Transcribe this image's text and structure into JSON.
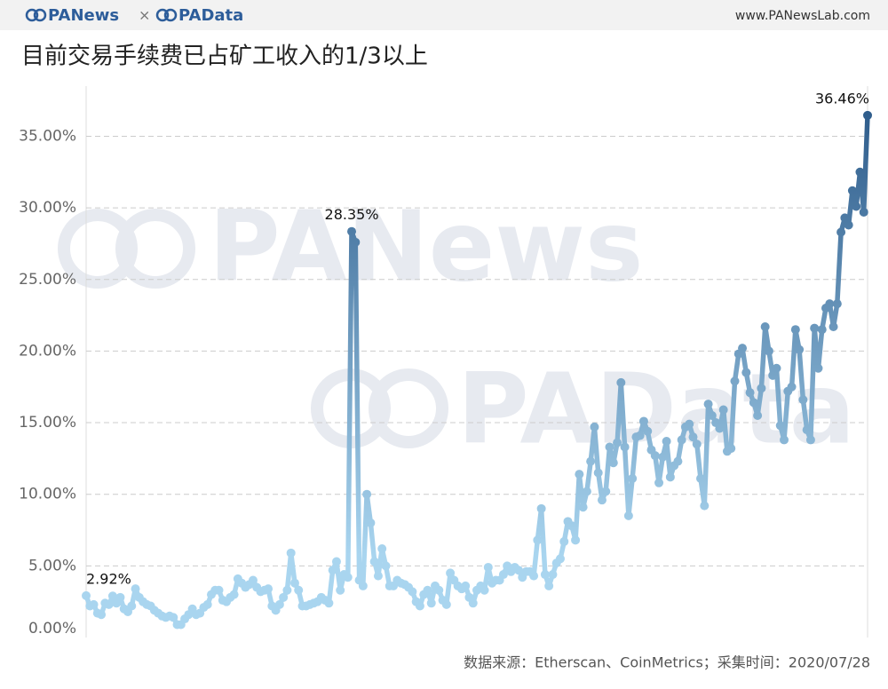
{
  "header": {
    "brand_left": "PANews",
    "separator": "×",
    "brand_right": "PAData",
    "site": "www.PANewsLab.com"
  },
  "watermark": [
    "PANews",
    "PAData"
  ],
  "footer": {
    "source": "数据来源：Etherscan、CoinMetrics；采集时间：2020/07/28"
  },
  "chart_data": {
    "type": "line",
    "title": "目前交易手续费已占矿工收入的1/3以上",
    "ylim": [
      0,
      38.5
    ],
    "yticks": [
      {
        "value": 0,
        "label": "0.00%"
      },
      {
        "value": 5,
        "label": "5.00%"
      },
      {
        "value": 10,
        "label": "10.00%"
      },
      {
        "value": 15,
        "label": "15.00%"
      },
      {
        "value": 20,
        "label": "20.00%"
      },
      {
        "value": 25,
        "label": "25.00%"
      },
      {
        "value": 30,
        "label": "30.00%"
      },
      {
        "value": 35,
        "label": "35.00%"
      }
    ],
    "grid": true,
    "color_low": "#a9d5ef",
    "color_high": "#2f5d8c",
    "values": [
      2.92,
      2.2,
      2.3,
      1.7,
      1.6,
      2.4,
      2.3,
      2.9,
      2.4,
      2.8,
      2.0,
      1.8,
      2.2,
      3.4,
      2.8,
      2.5,
      2.3,
      2.2,
      1.9,
      1.7,
      1.5,
      1.4,
      1.5,
      1.4,
      0.9,
      0.9,
      1.3,
      1.6,
      2.0,
      1.6,
      1.7,
      2.1,
      2.3,
      3.0,
      3.3,
      3.3,
      2.6,
      2.5,
      2.8,
      3.0,
      4.1,
      3.8,
      3.5,
      3.7,
      4.0,
      3.5,
      3.2,
      3.3,
      3.4,
      2.2,
      1.9,
      2.3,
      2.8,
      3.3,
      5.9,
      3.8,
      3.3,
      2.2,
      2.2,
      2.3,
      2.4,
      2.5,
      2.8,
      2.6,
      2.4,
      4.7,
      5.3,
      3.3,
      4.4,
      4.2,
      28.35,
      27.6,
      4.0,
      3.6,
      10.0,
      8.0,
      5.3,
      4.3,
      6.2,
      5.0,
      3.6,
      3.6,
      4.0,
      3.8,
      3.7,
      3.5,
      3.2,
      2.5,
      2.2,
      3.0,
      3.3,
      2.4,
      3.6,
      3.3,
      2.6,
      2.3,
      4.5,
      4.0,
      3.6,
      3.4,
      3.6,
      2.8,
      2.4,
      3.3,
      3.6,
      3.3,
      4.9,
      3.8,
      4.0,
      4.0,
      4.4,
      5.0,
      4.6,
      4.9,
      4.7,
      4.2,
      4.6,
      4.6,
      4.3,
      6.8,
      9.0,
      4.4,
      3.6,
      4.4,
      5.2,
      5.5,
      6.7,
      8.1,
      7.8,
      6.8,
      11.4,
      9.1,
      10.2,
      12.3,
      14.7,
      11.5,
      9.6,
      10.2,
      13.3,
      12.2,
      13.6,
      17.8,
      13.3,
      8.5,
      11.1,
      14.0,
      14.1,
      15.1,
      14.4,
      13.1,
      12.7,
      10.8,
      12.6,
      13.7,
      11.2,
      12.0,
      12.3,
      13.8,
      14.7,
      14.9,
      14.0,
      13.5,
      11.1,
      9.2,
      16.3,
      15.5,
      15.0,
      14.6,
      15.9,
      13.0,
      13.2,
      17.9,
      19.8,
      20.2,
      18.5,
      17.1,
      16.4,
      15.5,
      17.4,
      21.7,
      20.0,
      18.3,
      18.8,
      14.8,
      13.8,
      17.2,
      17.5,
      21.5,
      20.1,
      16.6,
      14.5,
      13.8,
      21.6,
      18.8,
      21.5,
      23.0,
      23.3,
      21.7,
      23.3,
      28.3,
      29.3,
      28.8,
      31.2,
      30.1,
      32.5,
      29.7,
      36.46
    ],
    "value_labels": [
      "2.92%",
      null,
      null,
      null,
      null,
      null,
      null,
      null,
      null,
      null,
      null,
      null,
      null,
      null,
      null,
      null,
      null,
      null,
      null,
      null,
      null,
      null,
      null,
      null,
      null,
      null,
      null,
      null,
      null,
      null,
      null,
      null,
      null,
      null,
      null,
      null,
      null,
      null,
      null,
      null,
      null,
      null,
      null,
      null,
      null,
      null,
      null,
      null,
      null,
      null,
      null,
      null,
      null,
      null,
      null,
      null,
      null,
      null,
      null,
      null,
      null,
      null,
      null,
      null,
      null,
      null,
      null,
      null,
      null,
      null,
      "28.35%",
      null,
      null,
      null,
      null,
      null,
      null,
      null,
      null,
      null,
      null,
      null,
      null,
      null,
      null,
      null,
      null,
      null,
      null,
      null,
      null,
      null,
      null,
      null,
      null,
      null,
      null,
      null,
      null,
      null,
      null,
      null,
      null,
      null,
      null,
      null,
      null,
      null,
      null,
      null,
      null,
      null,
      null,
      null,
      null,
      null,
      null,
      null,
      null,
      null,
      null,
      null,
      null,
      null,
      null,
      null,
      null,
      null,
      null,
      null,
      null,
      null,
      null,
      null,
      null,
      null,
      null,
      null,
      null,
      null,
      null,
      null,
      null,
      null,
      null,
      null,
      null,
      null,
      null,
      null,
      null,
      null,
      null,
      null,
      null,
      null,
      null,
      null,
      null,
      null,
      null,
      null,
      null,
      null,
      null,
      null,
      null,
      null,
      null,
      null,
      null,
      null,
      null,
      null,
      null,
      null,
      null,
      null,
      null,
      null,
      null,
      null,
      null,
      null,
      null,
      null,
      null,
      null,
      null,
      null,
      null,
      null,
      null,
      null,
      null,
      null,
      null,
      null,
      null,
      null,
      null,
      null,
      null,
      null,
      null,
      null,
      "36.46%"
    ]
  }
}
